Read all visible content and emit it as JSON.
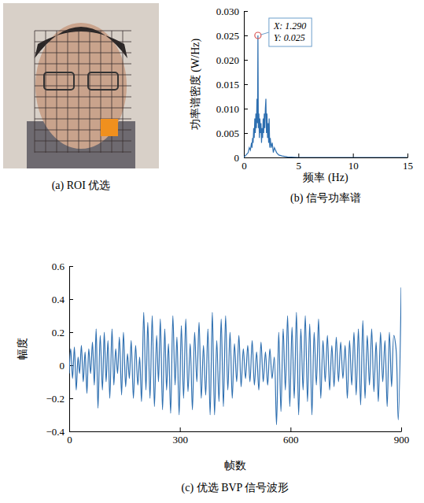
{
  "chart_data": [
    {
      "type": "image",
      "caption": "(a) ROI 优选"
    },
    {
      "type": "line",
      "caption": "(b) 信号功率谱",
      "x_label": "频率 (Hz)",
      "y_label": "功率谱密度 (W/Hz)",
      "color": "#2e6fb0",
      "xlim": [
        0,
        15
      ],
      "xticks": [
        0,
        5,
        10,
        15
      ],
      "ylim": [
        0,
        0.03
      ],
      "yticks": [
        0,
        0.005,
        {
          "value": 0.01,
          "label": "0.010"
        },
        0.015,
        {
          "value": 0.02,
          "label": "0.020"
        },
        0.025,
        {
          "value": 0.03,
          "label": "0.030"
        }
      ],
      "x": [
        0,
        0.2,
        0.4,
        0.5,
        0.6,
        0.7,
        0.75,
        0.8,
        0.85,
        0.9,
        0.95,
        1.0,
        1.05,
        1.1,
        1.15,
        1.2,
        1.25,
        1.29,
        1.33,
        1.38,
        1.42,
        1.47,
        1.52,
        1.57,
        1.62,
        1.67,
        1.72,
        1.77,
        1.82,
        1.87,
        1.92,
        1.97,
        2.02,
        2.07,
        2.12,
        2.17,
        2.22,
        2.27,
        2.32,
        2.37,
        2.42,
        2.5,
        2.6,
        2.7,
        2.8,
        3.0,
        3.2,
        3.5,
        4.0,
        5,
        7,
        10,
        15
      ],
      "values": [
        0,
        0.0005,
        0.001,
        0.002,
        0.0015,
        0.003,
        0.002,
        0.004,
        0.003,
        0.006,
        0.004,
        0.008,
        0.005,
        0.009,
        0.006,
        0.012,
        0.007,
        0.025,
        0.006,
        0.009,
        0.004,
        0.008,
        0.005,
        0.007,
        0.003,
        0.006,
        0.004,
        0.008,
        0.005,
        0.009,
        0.006,
        0.01,
        0.012,
        0.005,
        0.009,
        0.004,
        0.007,
        0.003,
        0.008,
        0.002,
        0.004,
        0.002,
        0.003,
        0.001,
        0.002,
        0.001,
        0.0005,
        0.0003,
        0.0001,
        0,
        0,
        0,
        0
      ],
      "annotations": [
        {
          "x": 1.29,
          "y": 0.025,
          "label_x": "X: 1.290",
          "label_y": "Y: 0.025"
        }
      ]
    },
    {
      "type": "line",
      "caption": "(c) 优选 BVP 信号波形",
      "x_label": "帧数",
      "y_label": "幅度",
      "color": "#2e6fb0",
      "xlim": [
        0,
        900
      ],
      "xticks": [
        0,
        300,
        600,
        900
      ],
      "ylim": [
        -0.4,
        0.6
      ],
      "yticks": [
        {
          "value": -0.4,
          "label": "−0.4"
        },
        {
          "value": -0.2,
          "label": "−0.2"
        },
        0,
        0.2,
        0.4,
        0.6
      ],
      "x": [
        0,
        4,
        9,
        14,
        19,
        24,
        28,
        33,
        38,
        43,
        48,
        53,
        58,
        63,
        68,
        73,
        78,
        84,
        90,
        95,
        100,
        105,
        110,
        116,
        121,
        126,
        131,
        136,
        142,
        147,
        153,
        158,
        163,
        168,
        174,
        180,
        186,
        191,
        196,
        202,
        208,
        213,
        219,
        225,
        231,
        237,
        242,
        247,
        253,
        259,
        264,
        269,
        275,
        281,
        287,
        292,
        298,
        304,
        310,
        316,
        322,
        328,
        334,
        340,
        346,
        352,
        358,
        364,
        370,
        376,
        382,
        388,
        394,
        400,
        406,
        412,
        418,
        424,
        430,
        436,
        442,
        448,
        454,
        460,
        466,
        472,
        478,
        484,
        490,
        496,
        502,
        508,
        514,
        520,
        526,
        532,
        538,
        544,
        550,
        556,
        562,
        568,
        574,
        580,
        586,
        592,
        598,
        604,
        610,
        616,
        622,
        628,
        634,
        640,
        646,
        652,
        658,
        664,
        670,
        676,
        682,
        688,
        694,
        700,
        706,
        712,
        718,
        724,
        730,
        736,
        742,
        748,
        754,
        760,
        766,
        772,
        778,
        784,
        790,
        796,
        802,
        808,
        814,
        820,
        826,
        832,
        838,
        844,
        850,
        856,
        862,
        868,
        874,
        880,
        886,
        892,
        900
      ],
      "values": [
        -0.05,
        0.1,
        -0.08,
        0.11,
        -0.15,
        0.05,
        -0.05,
        0.12,
        -0.1,
        0.08,
        -0.17,
        0.1,
        -0.05,
        0.14,
        -0.12,
        0.22,
        -0.26,
        0.18,
        -0.15,
        0.2,
        -0.1,
        0.15,
        -0.2,
        0.22,
        -0.12,
        0.1,
        -0.05,
        0.17,
        -0.18,
        0.2,
        -0.13,
        0.07,
        -0.08,
        0.15,
        -0.2,
        0.12,
        -0.12,
        0.05,
        -0.22,
        0.32,
        -0.15,
        0.26,
        -0.2,
        0.3,
        -0.25,
        0.18,
        -0.1,
        0.28,
        -0.27,
        0.22,
        -0.15,
        0.13,
        -0.29,
        0.3,
        -0.12,
        0.17,
        -0.3,
        0.24,
        -0.2,
        0.28,
        -0.16,
        0.13,
        -0.27,
        0.2,
        -0.1,
        0.26,
        -0.2,
        0.12,
        -0.18,
        0.22,
        -0.3,
        0.32,
        -0.3,
        0.15,
        -0.22,
        0.28,
        -0.25,
        0.3,
        -0.15,
        0.2,
        -0.2,
        0.13,
        -0.1,
        0.18,
        -0.13,
        0.1,
        -0.08,
        0.12,
        -0.1,
        0.15,
        -0.12,
        0.08,
        -0.15,
        0.14,
        -0.1,
        0.08,
        -0.12,
        0.1,
        -0.08,
        0.05,
        -0.36,
        0.2,
        -0.28,
        0.22,
        -0.15,
        0.3,
        -0.25,
        0.23,
        -0.2,
        0.32,
        -0.3,
        0.22,
        -0.15,
        0.3,
        -0.22,
        0.25,
        -0.3,
        0.2,
        -0.12,
        0.28,
        -0.2,
        0.15,
        -0.1,
        0.18,
        -0.15,
        0.12,
        -0.13,
        0.17,
        -0.1,
        0.14,
        -0.08,
        0.12,
        -0.2,
        0.15,
        -0.12,
        0.2,
        -0.18,
        0.22,
        -0.24,
        0.27,
        -0.2,
        0.18,
        -0.12,
        0.22,
        -0.16,
        0.14,
        -0.22,
        0.2,
        -0.1,
        0.15,
        -0.25,
        0.2,
        -0.13,
        0.18,
        0.1,
        -0.33,
        0.47
      ]
    }
  ]
}
